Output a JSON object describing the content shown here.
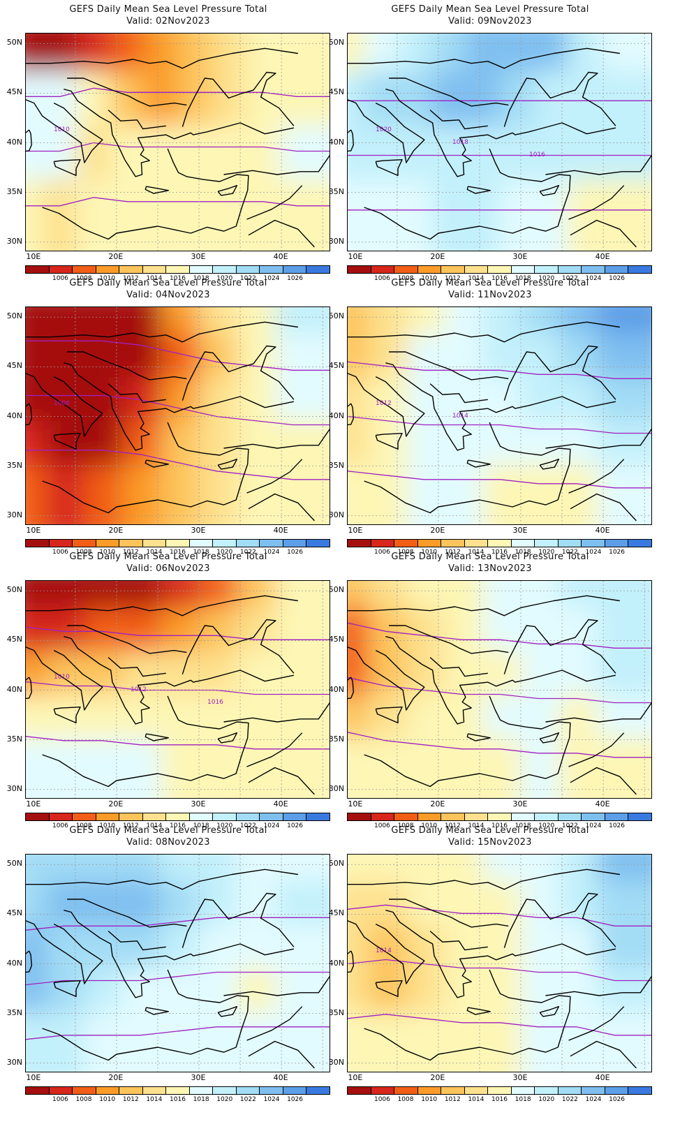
{
  "colors": {
    "scale": [
      "#a50f0f",
      "#d7261b",
      "#f25e16",
      "#fb9b28",
      "#fdc45b",
      "#fde18e",
      "#fdf6b5",
      "#e2fbff",
      "#c2f0fb",
      "#a2dcf5",
      "#7fbff0",
      "#5c9ee8",
      "#3a7ae0"
    ],
    "contour": "#a020c0",
    "land_line": "#000000",
    "grid": "#9a9a9a"
  },
  "colorbar_labels": [
    "1006",
    "1008",
    "1010",
    "1012",
    "1014",
    "1016",
    "1018",
    "1020",
    "1022",
    "1024",
    "1026"
  ],
  "lat_labels": [
    "50N",
    "45N",
    "40N",
    "35N",
    "30N"
  ],
  "lon_labels": [
    "10E",
    "20E",
    "30E",
    "40E"
  ],
  "panels": [
    {
      "title": "GEFS Daily Mean Sea Level Pressure Total",
      "valid": "Valid: 02Nov2023",
      "contour_labels": [
        "1010"
      ],
      "fill_levels": [
        0,
        0,
        1,
        2,
        3,
        4,
        5,
        6,
        6,
        7,
        7,
        6,
        4,
        3,
        4,
        5,
        6,
        6,
        7,
        7,
        5,
        6,
        6,
        6,
        6,
        6,
        7,
        6,
        5,
        6,
        6,
        6,
        6,
        6,
        6,
        6
      ]
    },
    {
      "title": "GEFS Daily Mean Sea Level Pressure Total",
      "valid": "Valid: 09Nov2023",
      "contour_labels": [
        "1020",
        "1018",
        "1016"
      ],
      "fill_levels": [
        6,
        7,
        8,
        9,
        10,
        10,
        10,
        8,
        7,
        8,
        9,
        9,
        10,
        10,
        9,
        8,
        8,
        8,
        8,
        8,
        8,
        8,
        8,
        8,
        8,
        8,
        8,
        7,
        7,
        7,
        8,
        8,
        7,
        7,
        6,
        6
      ]
    },
    {
      "title": "GEFS Daily Mean Sea Level Pressure Total",
      "valid": "Valid: 04Nov2023",
      "contour_labels": [
        "1006"
      ],
      "fill_levels": [
        0,
        0,
        0,
        0,
        3,
        5,
        6,
        8,
        0,
        0,
        0,
        0,
        2,
        4,
        6,
        7,
        0,
        0,
        0,
        1,
        3,
        5,
        6,
        7,
        1,
        0,
        0,
        2,
        4,
        5,
        6,
        6,
        2,
        1,
        2,
        3,
        4,
        5,
        6,
        6
      ]
    },
    {
      "title": "GEFS Daily Mean Sea Level Pressure Total",
      "valid": "Valid: 11Nov2023",
      "contour_labels": [
        "1012",
        "1014"
      ],
      "fill_levels": [
        4,
        5,
        6,
        7,
        8,
        9,
        10,
        11,
        4,
        5,
        7,
        7,
        8,
        8,
        9,
        10,
        5,
        6,
        7,
        7,
        7,
        8,
        8,
        9,
        5,
        6,
        7,
        7,
        7,
        7,
        7,
        8,
        6,
        6,
        7,
        7,
        6,
        6,
        6,
        7
      ]
    },
    {
      "title": "GEFS Daily Mean Sea Level Pressure Total",
      "valid": "Valid: 06Nov2023",
      "contour_labels": [
        "1010",
        "1012",
        "1016"
      ],
      "fill_levels": [
        0,
        0,
        0,
        0,
        1,
        2,
        4,
        6,
        1,
        1,
        2,
        2,
        3,
        4,
        5,
        6,
        3,
        4,
        4,
        5,
        5,
        5,
        6,
        6,
        6,
        6,
        6,
        6,
        6,
        6,
        6,
        6,
        7,
        7,
        7,
        7,
        6,
        6,
        6,
        6
      ]
    },
    {
      "title": "GEFS Daily Mean Sea Level Pressure Total",
      "valid": "Valid: 13Nov2023",
      "contour_labels": [],
      "fill_levels": [
        4,
        5,
        6,
        6,
        7,
        7,
        8,
        8,
        2,
        4,
        5,
        6,
        7,
        7,
        7,
        8,
        2,
        4,
        5,
        6,
        6,
        7,
        7,
        8,
        4,
        5,
        6,
        6,
        7,
        7,
        6,
        7,
        6,
        6,
        6,
        6,
        6,
        7,
        6,
        6
      ]
    },
    {
      "title": "GEFS Daily Mean Sea Level Pressure Total",
      "valid": "Valid: 08Nov2023",
      "contour_labels": [],
      "fill_levels": [
        9,
        9,
        9,
        9,
        8,
        8,
        7,
        7,
        9,
        10,
        10,
        10,
        9,
        8,
        7,
        8,
        10,
        9,
        9,
        9,
        8,
        7,
        7,
        7,
        10,
        9,
        8,
        7,
        7,
        7,
        6,
        7,
        8,
        8,
        7,
        7,
        7,
        7,
        7,
        7
      ]
    },
    {
      "title": "GEFS Daily Mean Sea Level Pressure Total",
      "valid": "Valid: 15Nov2023",
      "contour_labels": [
        "1014"
      ],
      "fill_levels": [
        6,
        6,
        6,
        6,
        7,
        7,
        8,
        10,
        5,
        5,
        6,
        6,
        6,
        7,
        8,
        9,
        5,
        4,
        5,
        6,
        6,
        7,
        7,
        9,
        5,
        4,
        5,
        6,
        6,
        7,
        7,
        8,
        6,
        6,
        6,
        6,
        6,
        7,
        7,
        7
      ]
    }
  ]
}
